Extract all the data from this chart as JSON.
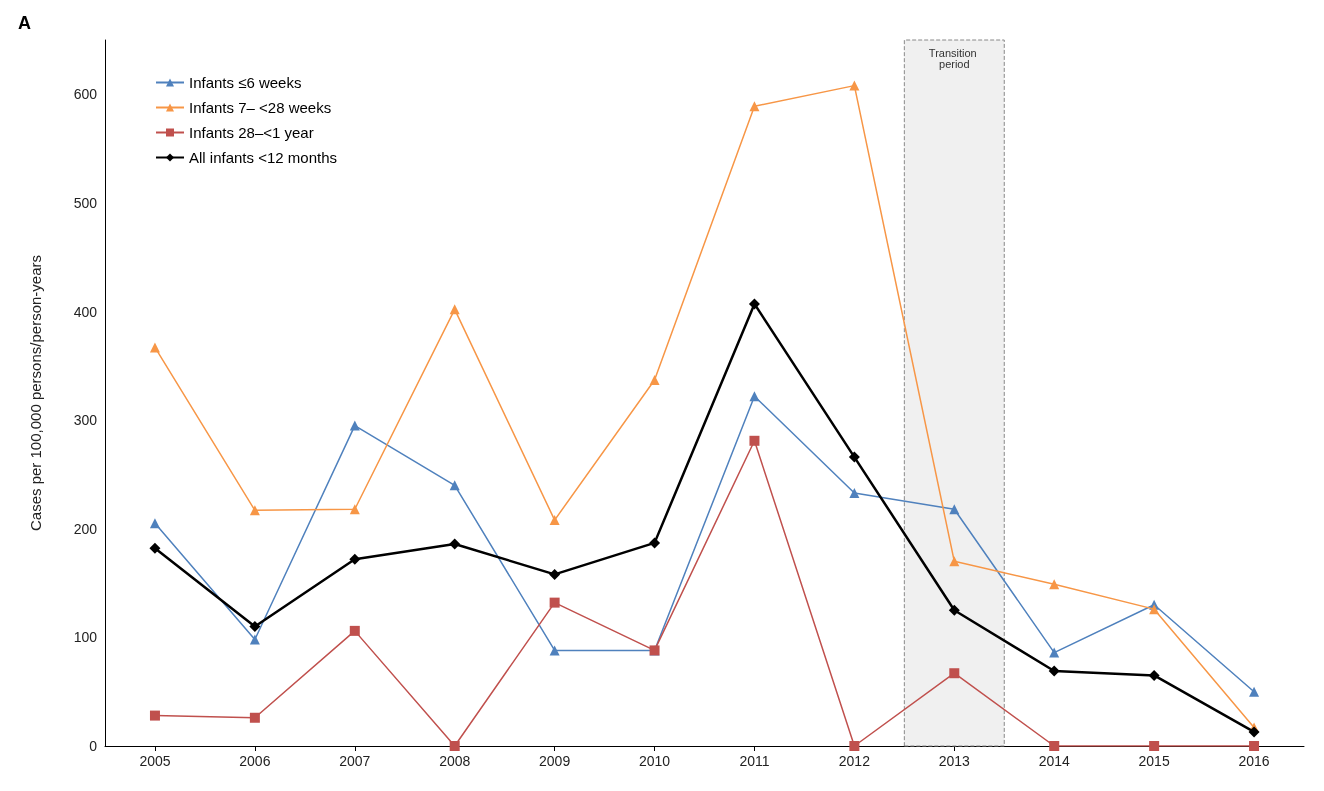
{
  "chart_data": {
    "type": "line",
    "ylabel": "Cases per 100,000 persons/person-years",
    "annotations": [
      "A"
    ],
    "x": [
      2005,
      2006,
      2007,
      2008,
      2009,
      2010,
      2011,
      2012,
      2013,
      2014,
      2015,
      2016
    ],
    "xlim": [
      2004.5,
      2016.5
    ],
    "xticks": [
      2005,
      2006,
      2007,
      2008,
      2009,
      2010,
      2011,
      2012,
      2013,
      2014,
      2015,
      2016
    ],
    "ylim": [
      0,
      650
    ],
    "yticks": [
      0,
      100,
      200,
      300,
      400,
      500,
      600
    ],
    "grid": false,
    "legend": "top left",
    "bands": [
      {
        "axis": "x",
        "from": 2012.5,
        "to": 2013.5,
        "label": "Transition period",
        "color": "#f0f0f0"
      }
    ],
    "series": [
      {
        "name": "Infants ≤6 weeks",
        "color": "#4f81bd",
        "marker": "triangle",
        "values": [
          205,
          98,
          295,
          240,
          88,
          88,
          322,
          233,
          218,
          86,
          130,
          50
        ]
      },
      {
        "name": "Infants 7– <28 weeks",
        "color": "#f79646",
        "marker": "triangle",
        "values": [
          367,
          217,
          218,
          402,
          208,
          337,
          589,
          608,
          170,
          149,
          126,
          17
        ]
      },
      {
        "name": "Infants 28–<1 year",
        "color": "#c0504d",
        "marker": "square",
        "values": [
          28,
          26,
          106,
          0,
          132,
          88,
          281,
          0,
          67,
          0,
          0,
          0
        ]
      },
      {
        "name": "All infants <12 months",
        "color": "#000000",
        "marker": "diamond",
        "values": [
          182,
          110,
          172,
          186,
          158,
          187,
          407,
          266,
          125,
          69,
          65,
          13
        ]
      }
    ]
  }
}
